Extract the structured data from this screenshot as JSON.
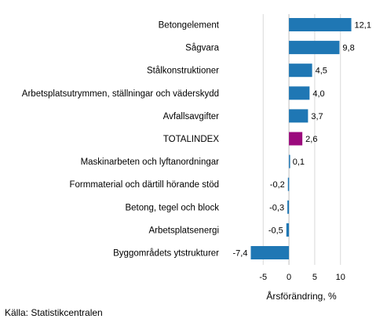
{
  "chart_data": {
    "type": "bar",
    "orientation": "horizontal",
    "categories": [
      "Betongelement",
      "Sågvara",
      "Stålkonstruktioner",
      "Arbetsplatsutrymmen, ställningar och väderskydd",
      "Avfallsavgifter",
      "TOTALINDEX",
      "Maskinarbeten och lyftanordningar",
      "Formmaterial och därtill hörande stöd",
      "Betong, tegel och block",
      "Arbetsplatsenergi",
      "Byggområdets ytstrukturer"
    ],
    "values": [
      12.1,
      9.8,
      4.5,
      4.0,
      3.7,
      2.6,
      0.1,
      -0.2,
      -0.3,
      -0.5,
      -7.4
    ],
    "value_labels": [
      "12,1",
      "9,8",
      "4,5",
      "4,0",
      "3,7",
      "2,6",
      "0,1",
      "-0,2",
      "-0,3",
      "-0,5",
      "-7,4"
    ],
    "highlight_category": "TOTALINDEX",
    "colors": {
      "bar": "#1f77b4",
      "highlight": "#9b0a7d",
      "grid": "#d9d9d9"
    },
    "xlabel": "Årsförändring, %",
    "xlim": [
      -12.5,
      17.5
    ],
    "xticks": [
      -5,
      0,
      5,
      10
    ],
    "xtick_labels": [
      "-5",
      "0",
      "5",
      "10"
    ],
    "grid": "vertical"
  },
  "source": "Källa: Statistikcentralen"
}
